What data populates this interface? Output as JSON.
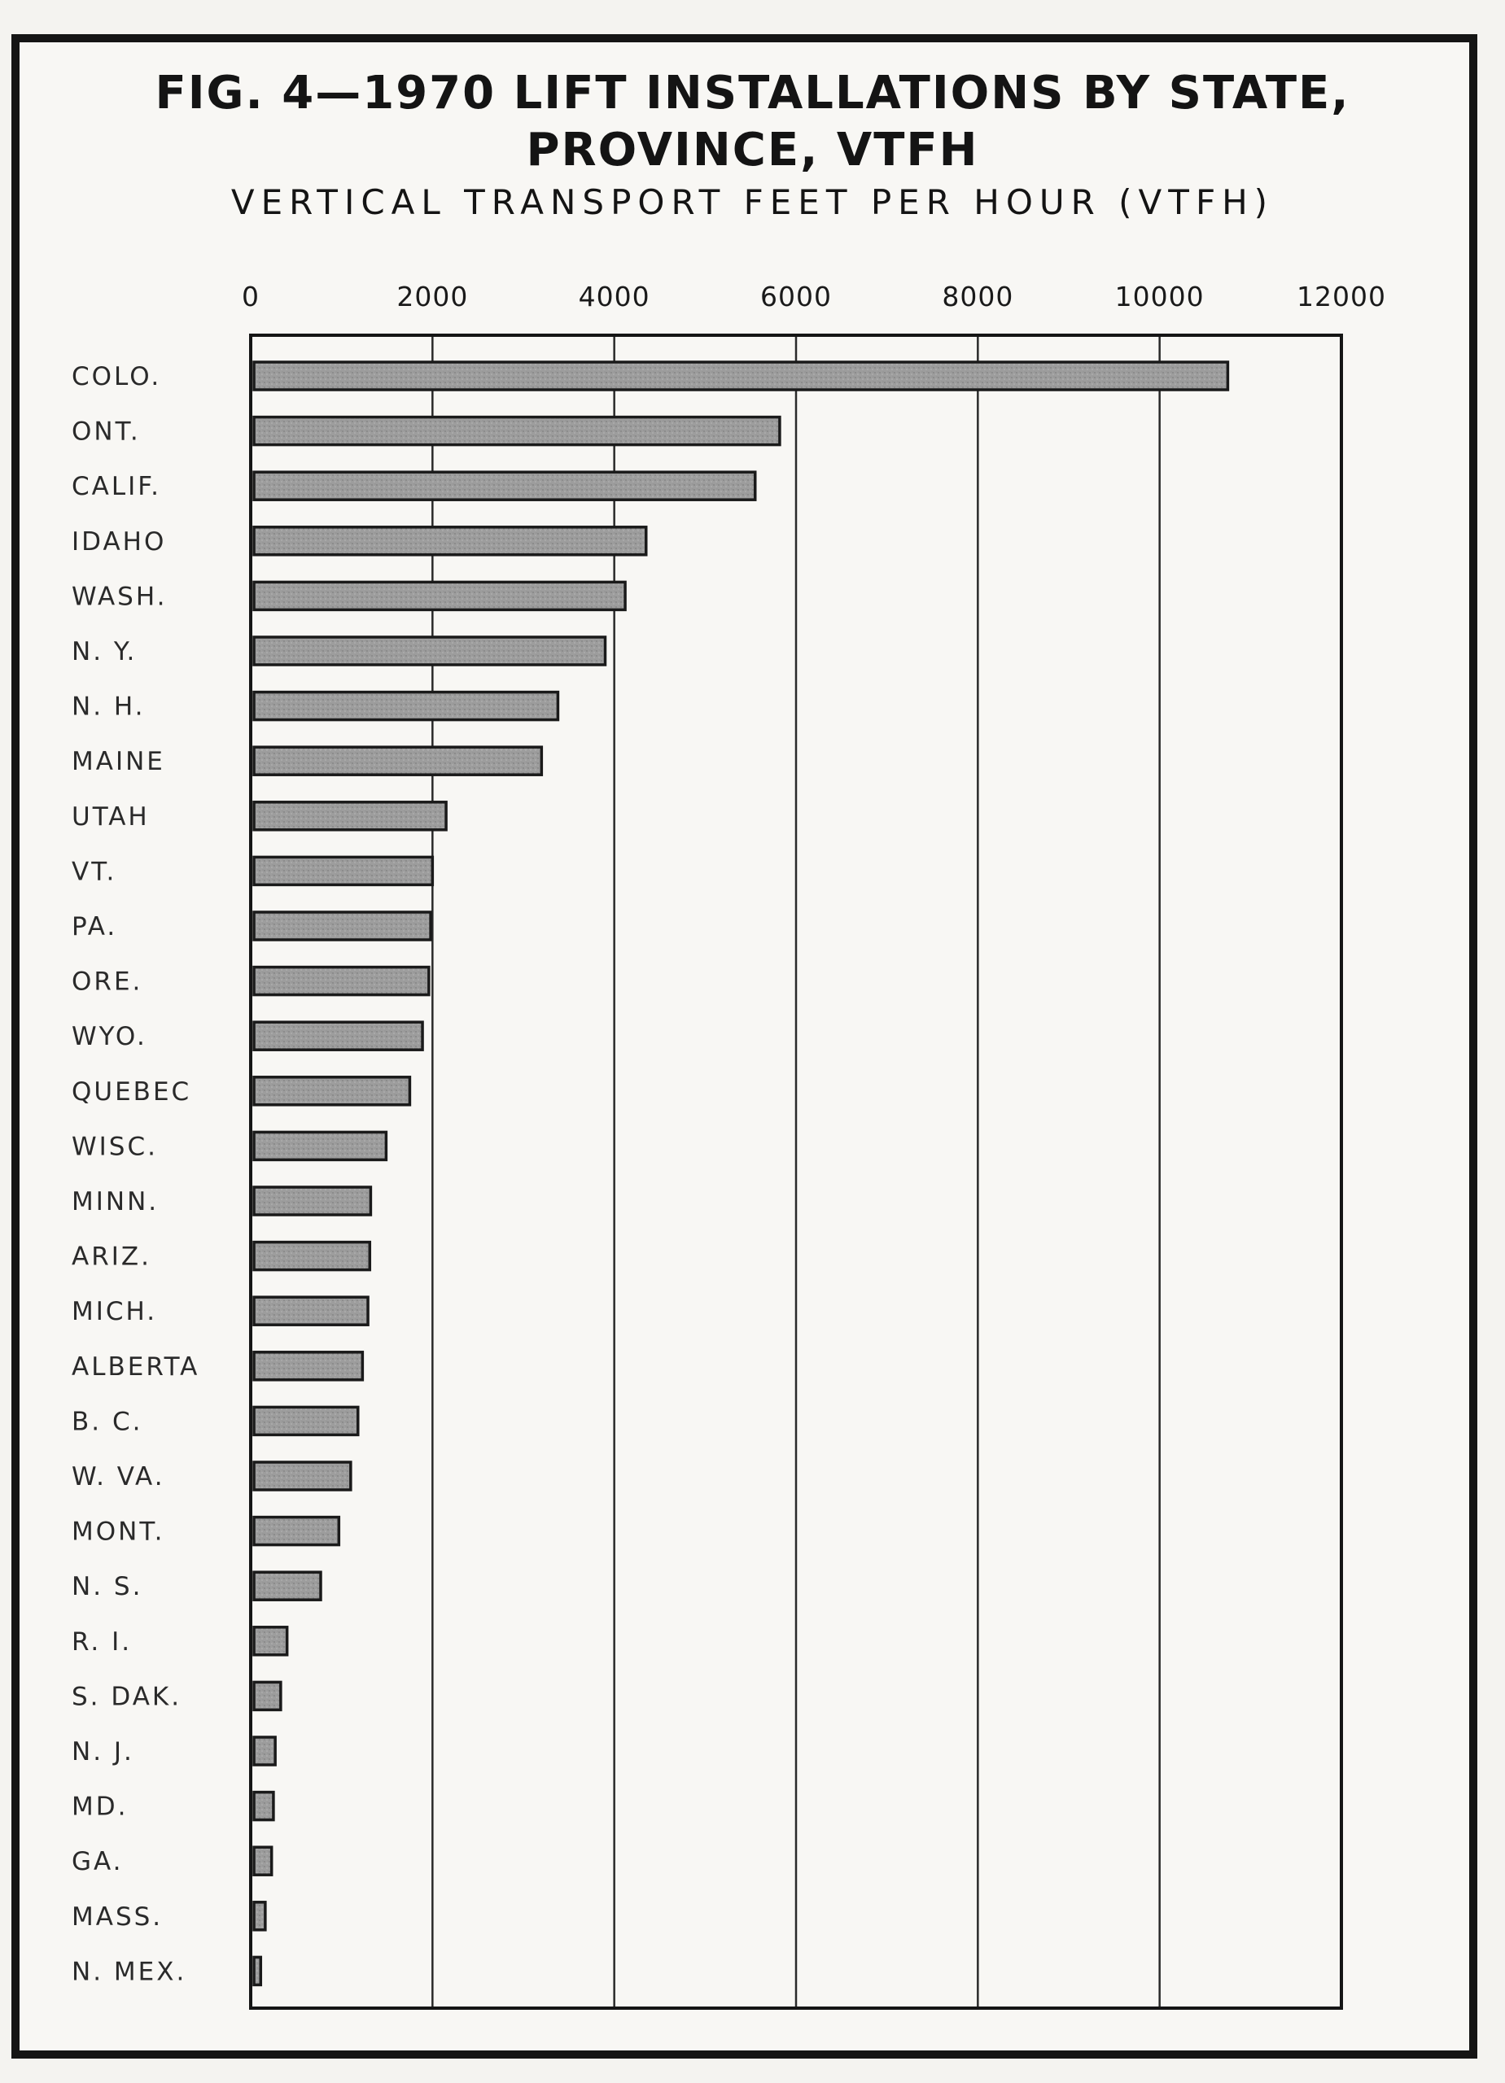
{
  "chart_data": {
    "type": "bar",
    "orientation": "horizontal",
    "title": "FIG. 4—1970 LIFT INSTALLATIONS BY STATE,",
    "title_line2": "PROVINCE, VTFH",
    "subtitle": "VERTICAL TRANSPORT FEET PER HOUR (VTFH)",
    "xlabel": "",
    "ylabel": "",
    "xlim": [
      0,
      12000
    ],
    "xticks": [
      0,
      2000,
      4000,
      6000,
      8000,
      10000,
      12000
    ],
    "xtick_labels": [
      "0",
      "2000",
      "4000",
      "6000",
      "8000",
      "10000",
      "12000"
    ],
    "grid": "vertical",
    "categories": [
      "COLO.",
      "ONT.",
      "CALIF.",
      "IDAHO",
      "WASH.",
      "N. Y.",
      "N. H.",
      "MAINE",
      "UTAH",
      "VT.",
      "PA.",
      "ORE.",
      "WYO.",
      "QUEBEC",
      "WISC.",
      "MINN.",
      "ARIZ.",
      "MICH.",
      "ALBERTA",
      "B. C.",
      "W. VA.",
      "MONT.",
      "N. S.",
      "R. I.",
      "S. DAK.",
      "N. J.",
      "MD.",
      "GA.",
      "MASS.",
      "N. MEX."
    ],
    "values": [
      10750,
      5820,
      5550,
      4350,
      4120,
      3900,
      3380,
      3200,
      2150,
      2000,
      1980,
      1960,
      1890,
      1750,
      1490,
      1320,
      1310,
      1290,
      1230,
      1180,
      1100,
      970,
      770,
      400,
      330,
      270,
      250,
      230,
      160,
      110
    ],
    "bar_color": "#9a9a9a",
    "bar_edge_color": "#1a1a1a"
  }
}
